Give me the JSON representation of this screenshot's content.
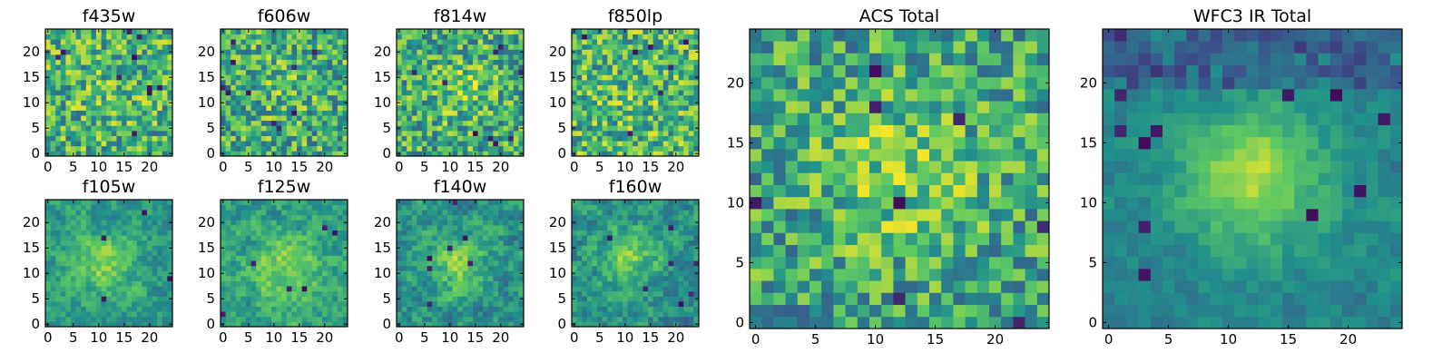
{
  "figure": {
    "colormap": [
      "#440154",
      "#3b528b",
      "#21918c",
      "#5ec962",
      "#fde725"
    ],
    "grid_size": 25
  },
  "chart_data": [
    {
      "type": "heatmap",
      "title": "f435w",
      "xticks": [
        0,
        5,
        10,
        15,
        20
      ],
      "yticks": [
        0,
        5,
        10,
        15,
        20
      ],
      "xlim": [
        0,
        24
      ],
      "ylim": [
        0,
        24
      ],
      "pattern": "noise",
      "seed": 11,
      "peak": [
        12,
        12
      ],
      "peak_width": 4,
      "peak_amp": 0.05,
      "noise": 0.3,
      "base": 0.65,
      "dark_pixels": 10
    },
    {
      "type": "heatmap",
      "title": "f606w",
      "xticks": [
        0,
        5,
        10,
        15,
        20
      ],
      "yticks": [
        0,
        5,
        10,
        15,
        20
      ],
      "xlim": [
        0,
        24
      ],
      "ylim": [
        0,
        24
      ],
      "pattern": "noise",
      "seed": 23,
      "peak": [
        12,
        14
      ],
      "peak_width": 4,
      "peak_amp": 0.1,
      "noise": 0.3,
      "base": 0.62,
      "dark_pixels": 10
    },
    {
      "type": "heatmap",
      "title": "f814w",
      "xticks": [
        0,
        5,
        10,
        15,
        20
      ],
      "yticks": [
        0,
        5,
        10,
        15,
        20
      ],
      "xlim": [
        0,
        24
      ],
      "ylim": [
        0,
        24
      ],
      "pattern": "noise",
      "seed": 37,
      "peak": [
        13,
        13
      ],
      "peak_width": 4,
      "peak_amp": 0.15,
      "noise": 0.3,
      "base": 0.62,
      "dark_pixels": 9
    },
    {
      "type": "heatmap",
      "title": "f850lp",
      "xticks": [
        0,
        5,
        10,
        15,
        20
      ],
      "yticks": [
        0,
        5,
        10,
        15,
        20
      ],
      "xlim": [
        0,
        24
      ],
      "ylim": [
        0,
        24
      ],
      "pattern": "noise",
      "seed": 41,
      "peak": [
        12,
        12
      ],
      "peak_width": 4,
      "peak_amp": 0.05,
      "noise": 0.3,
      "base": 0.66,
      "dark_pixels": 7
    },
    {
      "type": "heatmap",
      "title": "f105w",
      "xticks": [
        0,
        5,
        10,
        15,
        20
      ],
      "yticks": [
        0,
        5,
        10,
        15,
        20
      ],
      "xlim": [
        0,
        24
      ],
      "ylim": [
        0,
        24
      ],
      "pattern": "smooth",
      "seed": 53,
      "peak": [
        11,
        12
      ],
      "peak_width": 4,
      "peak_amp": 0.25,
      "noise": 0.22,
      "base": 0.55,
      "dark_pixels": 4
    },
    {
      "type": "heatmap",
      "title": "f125w",
      "xticks": [
        0,
        5,
        10,
        15,
        20
      ],
      "yticks": [
        0,
        5,
        10,
        15,
        20
      ],
      "xlim": [
        0,
        24
      ],
      "ylim": [
        0,
        24
      ],
      "pattern": "smooth",
      "seed": 61,
      "peak": [
        12,
        11
      ],
      "peak_width": 5,
      "peak_amp": 0.25,
      "noise": 0.24,
      "base": 0.55,
      "dark_pixels": 6
    },
    {
      "type": "heatmap",
      "title": "f140w",
      "xticks": [
        0,
        5,
        10,
        15,
        20
      ],
      "yticks": [
        0,
        5,
        10,
        15,
        20
      ],
      "xlim": [
        0,
        24
      ],
      "ylim": [
        0,
        24
      ],
      "pattern": "smooth",
      "seed": 71,
      "peak": [
        12,
        12
      ],
      "peak_width": 4,
      "peak_amp": 0.3,
      "noise": 0.26,
      "base": 0.5,
      "dark_pixels": 7
    },
    {
      "type": "heatmap",
      "title": "f160w",
      "xticks": [
        0,
        5,
        10,
        15,
        20
      ],
      "yticks": [
        0,
        5,
        10,
        15,
        20
      ],
      "xlim": [
        0,
        24
      ],
      "ylim": [
        0,
        24
      ],
      "pattern": "smooth",
      "seed": 83,
      "peak": [
        11,
        13
      ],
      "peak_width": 4,
      "peak_amp": 0.3,
      "noise": 0.26,
      "base": 0.5,
      "dark_pixels": 7
    },
    {
      "type": "heatmap",
      "title": "ACS Total",
      "xticks": [
        0,
        5,
        10,
        15,
        20
      ],
      "yticks": [
        0,
        5,
        10,
        15,
        20
      ],
      "xlim": [
        0,
        24
      ],
      "ylim": [
        0,
        24
      ],
      "pattern": "noise",
      "seed": 97,
      "peak": [
        12,
        13
      ],
      "peak_width": 5,
      "peak_amp": 0.2,
      "noise": 0.28,
      "base": 0.58,
      "dark_pixels": 8
    },
    {
      "type": "heatmap",
      "title": "WFC3 IR Total",
      "xticks": [
        0,
        5,
        10,
        15,
        20
      ],
      "yticks": [
        0,
        5,
        10,
        15,
        20
      ],
      "xlim": [
        0,
        24
      ],
      "ylim": [
        0,
        24
      ],
      "pattern": "smooth",
      "seed": 109,
      "peak": [
        12,
        12
      ],
      "peak_width": 4,
      "peak_amp": 0.45,
      "noise": 0.14,
      "base": 0.45,
      "dark_pixels": 12
    }
  ]
}
